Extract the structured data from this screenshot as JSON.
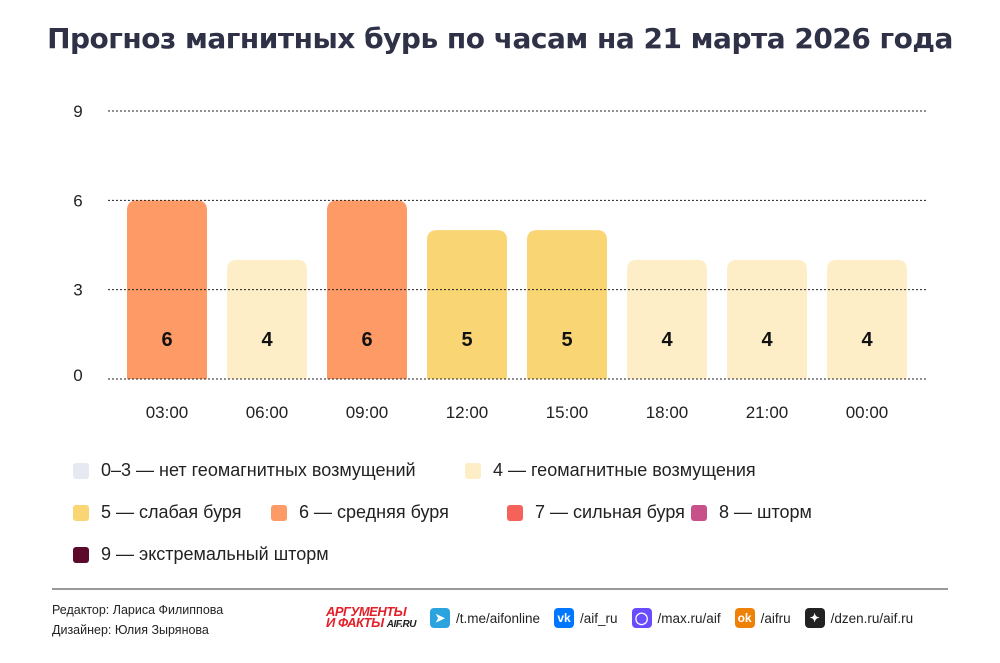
{
  "chart_data": {
    "type": "bar",
    "title": "Прогноз магнитных бурь по часам на 21 марта 2026 года",
    "categories": [
      "03:00",
      "06:00",
      "09:00",
      "12:00",
      "15:00",
      "18:00",
      "21:00",
      "00:00"
    ],
    "values": [
      6,
      4,
      6,
      5,
      5,
      4,
      4,
      4
    ],
    "ylim": [
      0,
      9
    ],
    "yticks": [
      0,
      3,
      6,
      9
    ],
    "grid": true,
    "legend_position": "bottom",
    "legend": [
      {
        "label": "0–3 — нет геомагнитных возмущений",
        "color": "#e6e9f2"
      },
      {
        "label": "4 — геомагнитные возмущения",
        "color": "#fdeec7"
      },
      {
        "label": "5 — слабая буря",
        "color": "#fad573"
      },
      {
        "label": "6 — средняя буря",
        "color": "#fd9a65"
      },
      {
        "label": "7 — сильная буря",
        "color": "#f4625a"
      },
      {
        "label": "8 — шторм",
        "color": "#c8508b"
      },
      {
        "label": "9 — экстремальный шторм",
        "color": "#5b0a2c"
      }
    ]
  },
  "credits": {
    "editor": "Редактор: Лариса Филиппова",
    "designer": "Дизайнер: Юлия Зырянова"
  },
  "logo": {
    "line1": "АРГУМЕНТЫ",
    "line2": "И ФАКТЫ",
    "site": "AIF.RU"
  },
  "social": [
    {
      "icon": "telegram-icon",
      "label": "/t.me/aifonline",
      "color": "#2aa3df",
      "glyph": "➤"
    },
    {
      "icon": "vk-icon",
      "label": "/aif_ru",
      "color": "#0077ff",
      "glyph": "vk"
    },
    {
      "icon": "max-icon",
      "label": "/max.ru/aif",
      "color": "#6a4cff",
      "glyph": "◯"
    },
    {
      "icon": "ok-icon",
      "label": "/aifru",
      "color": "#ee8208",
      "glyph": "ok"
    },
    {
      "icon": "dzen-icon",
      "label": "/dzen.ru/aif.ru",
      "color": "#222222",
      "glyph": "✦"
    }
  ]
}
